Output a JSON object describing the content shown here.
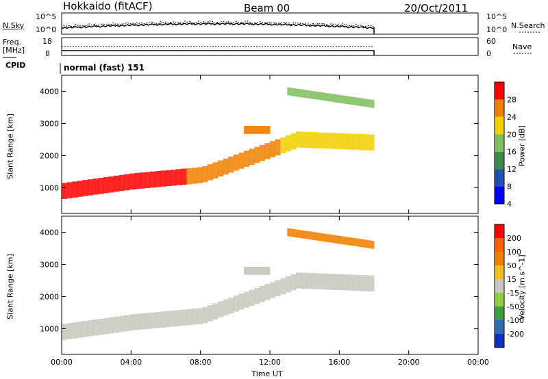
{
  "header": {
    "station": "Hokkaido (fitACF)",
    "beam": "Beam 00",
    "date": "20/Oct/2011"
  },
  "noise_panel": {
    "left_label": "N.Sky",
    "right_label": "N.Search",
    "left_ticks": [
      "10^5",
      "10^0"
    ],
    "right_ticks": [
      "10^5",
      "10^0"
    ]
  },
  "freq_panel": {
    "left_label_1": "Freq.",
    "left_label_2": "[MHz]",
    "right_label": "Nave",
    "left_ticks": [
      "18",
      "8"
    ],
    "right_ticks": [
      "60",
      "0"
    ]
  },
  "cpid": {
    "label": "CPID",
    "value": "normal (fast) 151"
  },
  "chart_data": [
    {
      "type": "heatmap",
      "ylabel": "Slant Range [km]",
      "xlabel": "",
      "ylim": [
        200,
        4500
      ],
      "yticks": [
        "4000",
        "3000",
        "2000",
        "1000"
      ],
      "xlim": [
        "00:00",
        "24:00"
      ],
      "data_end": "18:00",
      "colorbar": {
        "label": "Power [dB]",
        "ticks": [
          "28",
          "24",
          "20",
          "16",
          "12",
          "8",
          "4"
        ],
        "range": [
          0,
          30
        ],
        "colors": [
          "#0000ff",
          "#2050b0",
          "#3d8c4a",
          "#80c060",
          "#f0d000",
          "#f08000",
          "#ff0000"
        ]
      },
      "echo_bands": [
        {
          "x": [
            0,
            4,
            8,
            12,
            13.5,
            18
          ],
          "range_km": [
            900,
            1200,
            1400,
            2200,
            2500,
            2400
          ]
        },
        {
          "x": [
            10.5,
            12
          ],
          "range_km": [
            2800,
            2800
          ]
        },
        {
          "x": [
            13,
            18
          ],
          "range_km": [
            4000,
            3600
          ]
        }
      ]
    },
    {
      "type": "heatmap",
      "ylabel": "Slant Range [km]",
      "xlabel": "Time UT",
      "ylim": [
        200,
        4500
      ],
      "yticks": [
        "4000",
        "3000",
        "2000",
        "1000"
      ],
      "xticks": [
        "00:00",
        "04:00",
        "08:00",
        "12:00",
        "16:00",
        "20:00",
        "00:00"
      ],
      "colorbar": {
        "label": "Velocity [m s^-1]",
        "ticks": [
          "200",
          "100",
          "50",
          "15",
          "-15",
          "-50",
          "-100",
          "-200"
        ],
        "colors": [
          "#1030c0",
          "#3070b0",
          "#40a040",
          "#90d040",
          "#c8c8c0",
          "#f0c020",
          "#f08000",
          "#ff6000",
          "#ff0000"
        ]
      }
    }
  ]
}
